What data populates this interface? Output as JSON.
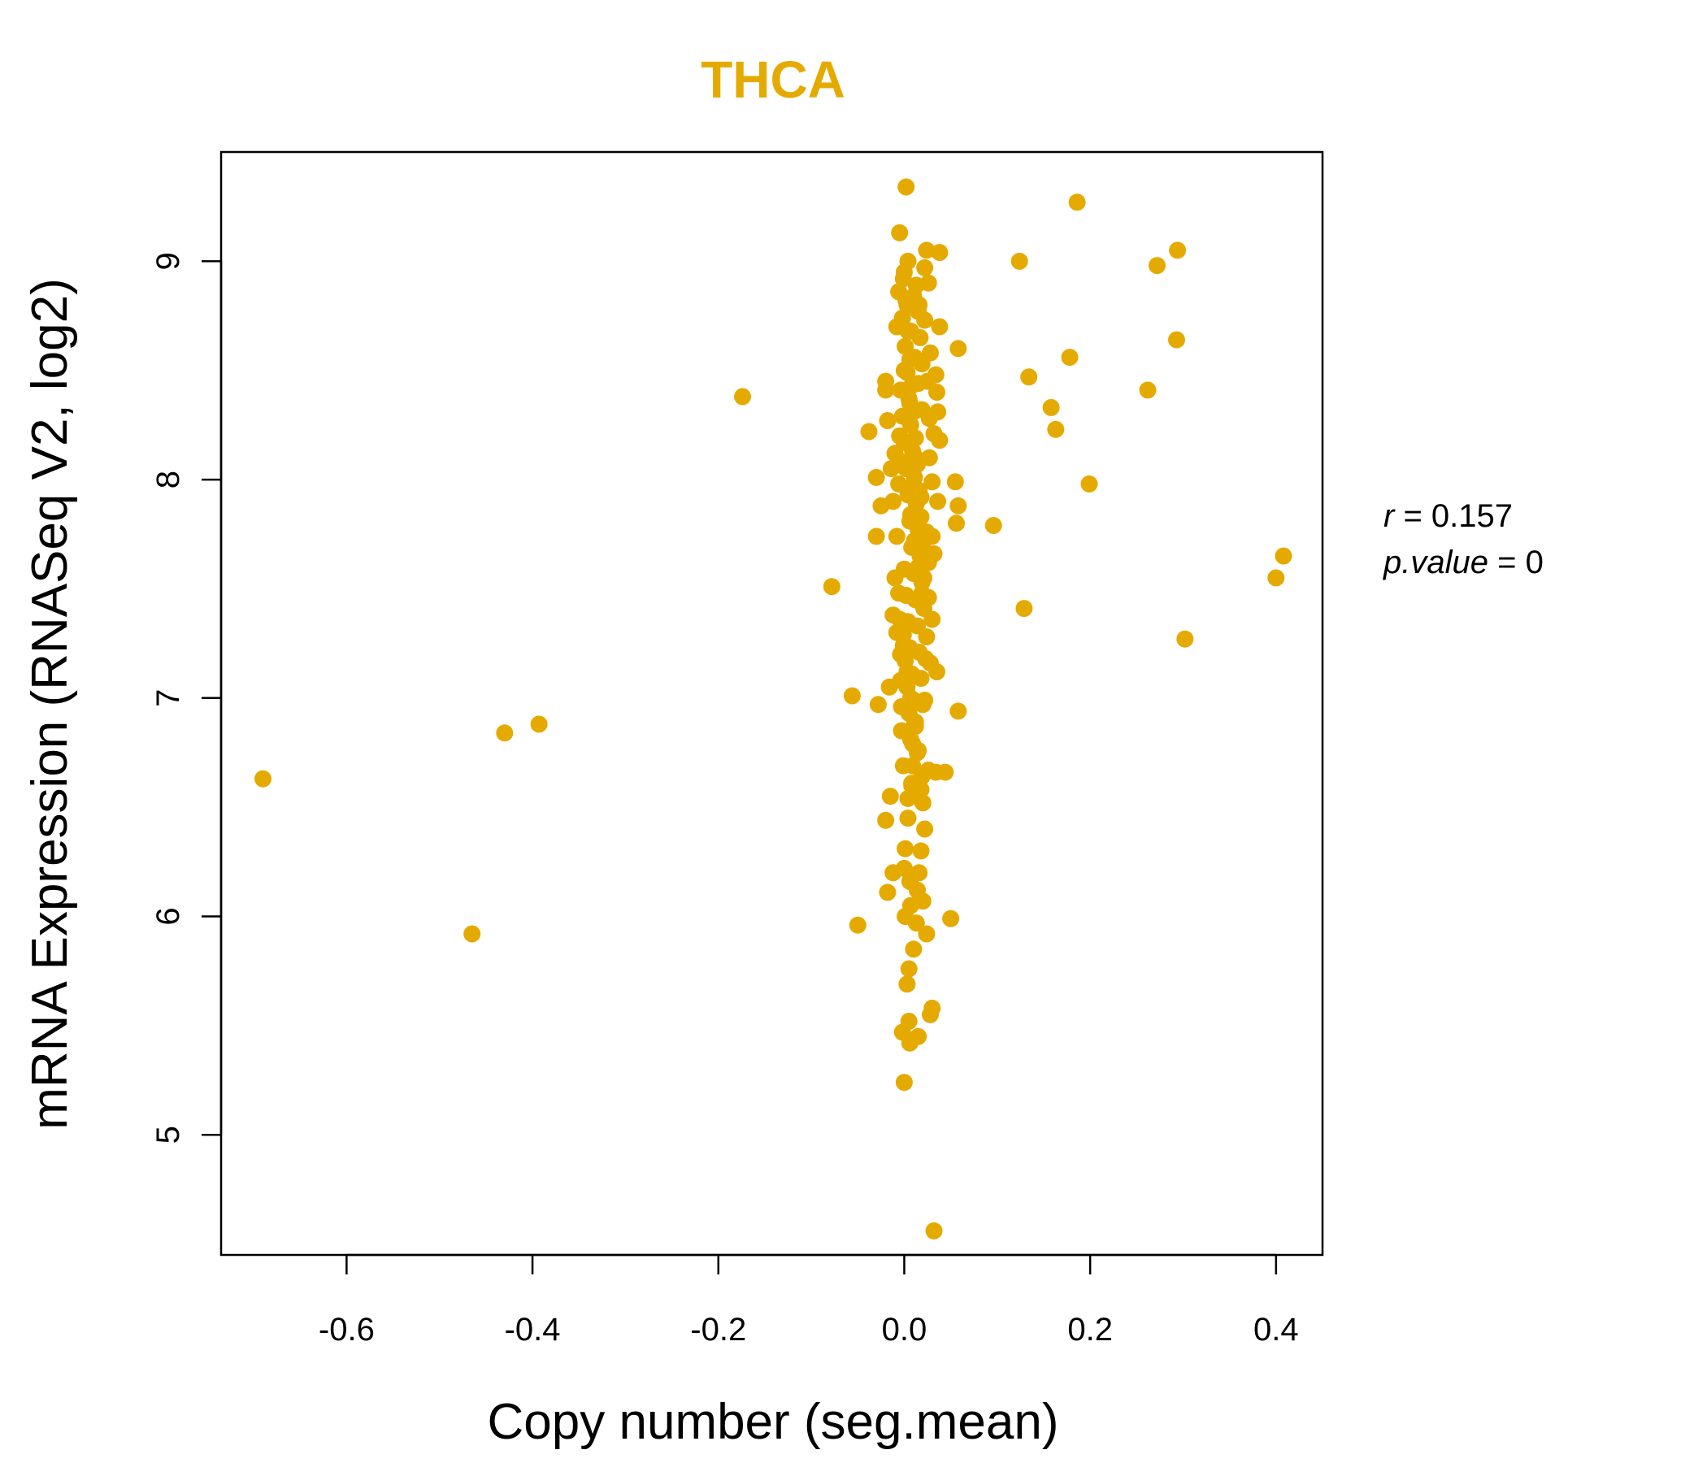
{
  "colors": {
    "point": "#E5AA00",
    "title": "#E5AA00",
    "axis": "#000000"
  },
  "stats": {
    "r_symbol": "r",
    "r_text": " = 0.157",
    "p_symbol": "p.value",
    "p_text": " = 0"
  },
  "chart_data": {
    "type": "scatter",
    "title": "THCA",
    "xlabel": "Copy number (seg.mean)",
    "ylabel": "mRNA Expression (RNASeq V2, log2)",
    "xlim": [
      -0.735,
      0.45
    ],
    "ylim": [
      4.45,
      9.5
    ],
    "xticks": [
      -0.6,
      -0.4,
      -0.2,
      0.0,
      0.2,
      0.4
    ],
    "xtick_labels": [
      "-0.6",
      "-0.4",
      "-0.2",
      "0.0",
      "0.2",
      "0.4"
    ],
    "yticks": [
      5,
      6,
      7,
      8,
      9
    ],
    "ytick_labels": [
      "5",
      "6",
      "7",
      "8",
      "9"
    ],
    "points": [
      [
        -0.69,
        6.63
      ],
      [
        -0.465,
        5.92
      ],
      [
        -0.43,
        6.84
      ],
      [
        -0.393,
        6.88
      ],
      [
        -0.174,
        8.38
      ],
      [
        -0.078,
        7.51
      ],
      [
        -0.056,
        7.01
      ],
      [
        -0.05,
        5.96
      ],
      [
        -0.038,
        8.22
      ],
      [
        -0.03,
        8.01
      ],
      [
        -0.03,
        7.74
      ],
      [
        -0.028,
        6.97
      ],
      [
        -0.025,
        7.88
      ],
      [
        -0.02,
        8.45
      ],
      [
        -0.02,
        8.41
      ],
      [
        -0.018,
        8.27
      ],
      [
        -0.018,
        6.11
      ],
      [
        -0.02,
        6.44
      ],
      [
        -0.016,
        7.05
      ],
      [
        -0.015,
        6.55
      ],
      [
        -0.012,
        6.2
      ],
      [
        -0.012,
        7.38
      ],
      [
        -0.01,
        7.55
      ],
      [
        -0.008,
        8.7
      ],
      [
        -0.006,
        8.86
      ],
      [
        -0.005,
        9.13
      ],
      [
        -0.004,
        7.2
      ],
      [
        -0.003,
        6.96
      ],
      [
        -0.002,
        5.47
      ],
      [
        -0.001,
        6.69
      ],
      [
        0.0,
        5.24
      ],
      [
        0.0,
        6.22
      ],
      [
        0.001,
        6.0
      ],
      [
        0.001,
        6.31
      ],
      [
        0.002,
        9.34
      ],
      [
        0.003,
        5.69
      ],
      [
        0.004,
        6.45
      ],
      [
        0.004,
        6.54
      ],
      [
        0.005,
        5.52
      ],
      [
        0.005,
        5.76
      ],
      [
        0.006,
        5.42
      ],
      [
        0.006,
        6.16
      ],
      [
        0.007,
        6.05
      ],
      [
        0.008,
        6.61
      ],
      [
        0.009,
        6.79
      ],
      [
        0.01,
        5.85
      ],
      [
        0.012,
        6.89
      ],
      [
        0.013,
        5.97
      ],
      [
        0.015,
        5.45
      ],
      [
        0.016,
        6.2
      ],
      [
        0.018,
        6.58
      ],
      [
        0.02,
        6.07
      ],
      [
        0.022,
        6.4
      ],
      [
        0.024,
        5.92
      ],
      [
        0.026,
        6.67
      ],
      [
        0.028,
        5.55
      ],
      [
        0.03,
        5.58
      ],
      [
        0.032,
        4.56
      ],
      [
        0.034,
        6.66
      ],
      [
        0.035,
        7.12
      ],
      [
        0.028,
        7.16
      ],
      [
        0.03,
        7.36
      ],
      [
        0.026,
        7.46
      ],
      [
        0.032,
        7.66
      ],
      [
        0.03,
        7.74
      ],
      [
        0.036,
        7.9
      ],
      [
        0.038,
        8.18
      ],
      [
        0.036,
        8.31
      ],
      [
        0.035,
        8.4
      ],
      [
        0.034,
        8.48
      ],
      [
        0.038,
        8.7
      ],
      [
        0.022,
        8.97
      ],
      [
        0.024,
        9.05
      ],
      [
        0.038,
        9.04
      ],
      [
        0.022,
        8.73
      ],
      [
        0.044,
        6.66
      ],
      [
        0.05,
        5.99
      ],
      [
        0.055,
        7.99
      ],
      [
        0.056,
        7.8
      ],
      [
        0.058,
        7.88
      ],
      [
        0.058,
        8.6
      ],
      [
        0.058,
        6.94
      ],
      [
        0.096,
        7.79
      ],
      [
        0.124,
        9.0
      ],
      [
        0.129,
        7.41
      ],
      [
        0.134,
        8.47
      ],
      [
        0.158,
        8.33
      ],
      [
        0.163,
        8.23
      ],
      [
        0.178,
        8.56
      ],
      [
        0.186,
        9.27
      ],
      [
        0.199,
        7.98
      ],
      [
        0.262,
        8.41
      ],
      [
        0.272,
        8.98
      ],
      [
        0.293,
        8.64
      ],
      [
        0.294,
        9.05
      ],
      [
        0.302,
        7.27
      ],
      [
        0.4,
        7.55
      ],
      [
        0.408,
        7.65
      ],
      [
        0.0,
        8.95
      ],
      [
        0.002,
        8.82
      ],
      [
        0.004,
        8.68
      ],
      [
        0.006,
        8.55
      ],
      [
        0.008,
        8.43
      ],
      [
        0.01,
        8.31
      ],
      [
        0.012,
        8.19
      ],
      [
        0.014,
        8.07
      ],
      [
        0.016,
        7.95
      ],
      [
        0.018,
        7.83
      ],
      [
        0.02,
        7.71
      ],
      [
        0.0,
        7.59
      ],
      [
        0.002,
        7.47
      ],
      [
        0.004,
        7.35
      ],
      [
        0.006,
        7.23
      ],
      [
        0.008,
        7.11
      ],
      [
        0.01,
        6.99
      ],
      [
        0.012,
        6.87
      ],
      [
        0.014,
        6.75
      ],
      [
        -0.002,
        8.74
      ],
      [
        0.001,
        8.61
      ],
      [
        0.003,
        8.49
      ],
      [
        0.005,
        8.37
      ],
      [
        0.007,
        8.25
      ],
      [
        0.009,
        8.13
      ],
      [
        0.011,
        8.01
      ],
      [
        0.013,
        7.89
      ],
      [
        0.015,
        7.77
      ],
      [
        0.017,
        7.65
      ],
      [
        0.019,
        7.53
      ],
      [
        0.021,
        7.41
      ],
      [
        -0.001,
        7.29
      ],
      [
        0.001,
        7.17
      ],
      [
        0.003,
        7.05
      ],
      [
        0.005,
        6.93
      ],
      [
        0.007,
        6.81
      ],
      [
        0.009,
        6.69
      ],
      [
        0.011,
        6.57
      ],
      [
        0.013,
        8.89
      ],
      [
        0.015,
        8.77
      ],
      [
        0.017,
        8.65
      ],
      [
        0.019,
        8.53
      ],
      [
        -0.004,
        8.41
      ],
      [
        -0.002,
        8.29
      ],
      [
        0.0,
        8.17
      ],
      [
        0.002,
        8.05
      ],
      [
        0.004,
        7.93
      ],
      [
        0.006,
        7.81
      ],
      [
        0.008,
        7.69
      ],
      [
        0.01,
        7.57
      ],
      [
        0.012,
        7.45
      ],
      [
        0.014,
        7.33
      ],
      [
        0.016,
        7.21
      ],
      [
        0.018,
        7.09
      ],
      [
        0.02,
        6.97
      ],
      [
        -0.003,
        6.85
      ],
      [
        -0.001,
        8.92
      ],
      [
        0.003,
        8.8
      ],
      [
        0.007,
        8.68
      ],
      [
        0.011,
        8.56
      ],
      [
        0.015,
        8.44
      ],
      [
        0.019,
        8.32
      ],
      [
        -0.005,
        8.2
      ],
      [
        -0.001,
        8.08
      ],
      [
        0.003,
        7.96
      ],
      [
        0.007,
        7.84
      ],
      [
        0.011,
        7.72
      ],
      [
        0.015,
        7.6
      ],
      [
        0.019,
        7.48
      ],
      [
        -0.005,
        7.36
      ],
      [
        -0.001,
        7.24
      ],
      [
        0.003,
        7.12
      ],
      [
        0.007,
        7.0
      ],
      [
        0.011,
        6.88
      ],
      [
        0.015,
        6.76
      ],
      [
        0.019,
        6.64
      ],
      [
        0.0,
        8.5
      ],
      [
        0.006,
        8.35
      ],
      [
        0.012,
        8.1
      ],
      [
        0.018,
        7.92
      ],
      [
        0.024,
        7.76
      ],
      [
        0.026,
        7.62
      ],
      [
        0.024,
        7.28
      ],
      [
        0.022,
        6.99
      ],
      [
        0.027,
        8.1
      ],
      [
        0.025,
        8.45
      ],
      [
        0.027,
        8.28
      ],
      [
        0.021,
        7.55
      ],
      [
        0.023,
        7.18
      ],
      [
        0.028,
        8.58
      ],
      [
        0.026,
        8.9
      ],
      [
        0.004,
        9.0
      ],
      [
        0.01,
        8.84
      ],
      [
        0.016,
        8.8
      ],
      [
        -0.006,
        7.98
      ],
      [
        -0.008,
        7.74
      ],
      [
        -0.01,
        8.12
      ],
      [
        -0.006,
        7.48
      ],
      [
        -0.008,
        7.3
      ],
      [
        -0.004,
        7.08
      ],
      [
        -0.012,
        7.9
      ],
      [
        -0.014,
        8.05
      ],
      [
        0.03,
        7.99
      ],
      [
        0.032,
        8.21
      ],
      [
        0.02,
        6.52
      ],
      [
        0.018,
        6.3
      ],
      [
        0.014,
        6.12
      ],
      [
        0.008,
        6.6
      ]
    ]
  }
}
